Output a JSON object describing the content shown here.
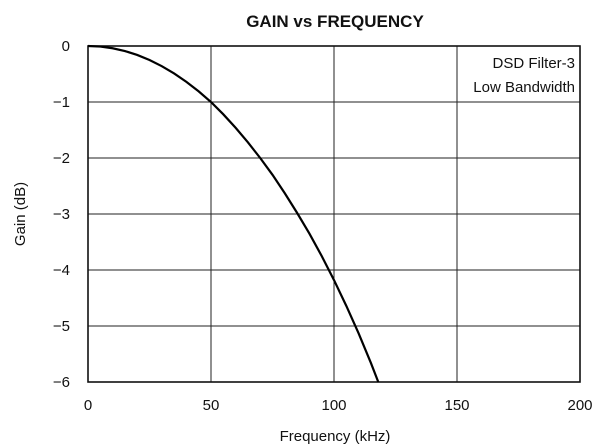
{
  "chart_data": {
    "type": "line",
    "title": "GAIN vs FREQUENCY",
    "xlabel": "Frequency (kHz)",
    "ylabel": "Gain (dB)",
    "xlim": [
      0,
      200
    ],
    "ylim": [
      -6,
      0
    ],
    "grid": true,
    "x_ticks": [
      "0",
      "50",
      "100",
      "150",
      "200"
    ],
    "y_ticks": [
      "0",
      "−1",
      "−2",
      "−3",
      "−4",
      "−5",
      "−6"
    ],
    "annotations": [
      "DSD Filter-3",
      "Low Bandwidth"
    ],
    "annotation_placement": "top-right",
    "series": [
      {
        "x": [
          0,
          5,
          10,
          15,
          20,
          25,
          30,
          35,
          40,
          45,
          50,
          55,
          60,
          65,
          70,
          75,
          80,
          85,
          90,
          95,
          100,
          105,
          110,
          115,
          118
        ],
        "y": [
          0,
          -0.01,
          -0.04,
          -0.09,
          -0.16,
          -0.25,
          -0.36,
          -0.49,
          -0.64,
          -0.81,
          -1.0,
          -1.22,
          -1.46,
          -1.72,
          -2.0,
          -2.3,
          -2.63,
          -2.98,
          -3.35,
          -3.75,
          -4.18,
          -4.64,
          -5.13,
          -5.66,
          -6.0
        ]
      }
    ]
  }
}
